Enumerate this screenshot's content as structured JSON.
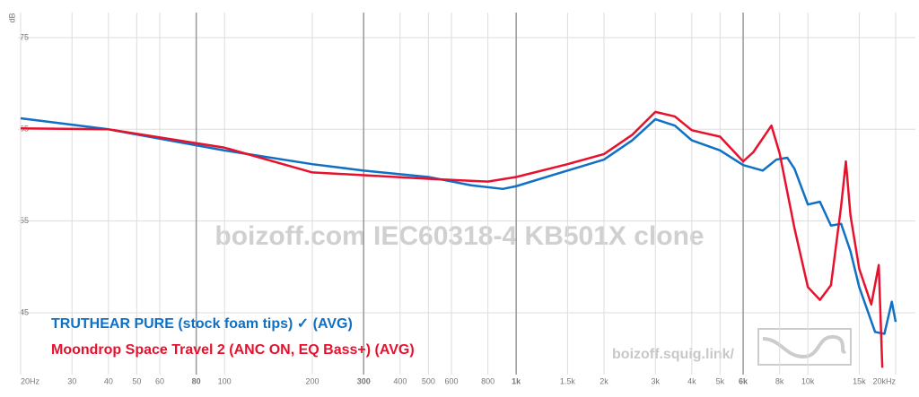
{
  "chart_data": {
    "type": "line",
    "watermark": "boizoff.com IEC60318-4 KB501X clone",
    "site": "boizoff.squig.link/",
    "y_label": "dB",
    "xlog": true,
    "xlim": [
      20,
      20000
    ],
    "ylim": [
      38,
      77
    ],
    "yticks": [
      45,
      55,
      65,
      75
    ],
    "xticks": [
      {
        "value": 20,
        "label": "20Hz"
      },
      30,
      40,
      50,
      60,
      80,
      100,
      200,
      300,
      400,
      500,
      600,
      800,
      {
        "value": 1000,
        "label": "1k"
      },
      {
        "value": 1500,
        "label": "1.5k"
      },
      {
        "value": 2000,
        "label": "2k"
      },
      {
        "value": 3000,
        "label": "3k"
      },
      {
        "value": 4000,
        "label": "4k"
      },
      {
        "value": 5000,
        "label": "5k"
      },
      {
        "value": 6000,
        "label": "6k"
      },
      {
        "value": 8000,
        "label": "8k"
      },
      {
        "value": 10000,
        "label": "10k"
      },
      {
        "value": 15000,
        "label": "15k"
      },
      {
        "value": 20000,
        "label": "20kHz"
      }
    ],
    "bold_xticks": [
      80,
      300,
      1000,
      6000
    ],
    "grid": true,
    "series": [
      {
        "name": "TRUTHEAR PURE (stock foam tips) ✓ (AVG)",
        "color": "#1070c4",
        "x": [
          20,
          40,
          100,
          200,
          300,
          500,
          700,
          900,
          1000,
          1500,
          2000,
          2500,
          3000,
          3500,
          4000,
          5000,
          6000,
          7000,
          7800,
          8500,
          9000,
          10000,
          11000,
          12000,
          13000,
          14000,
          15000,
          17000,
          18300,
          19400,
          20000
        ],
        "values": [
          66.2,
          65,
          62.7,
          61.2,
          60.5,
          59.8,
          58.9,
          58.5,
          58.8,
          60.5,
          61.7,
          63.8,
          66.1,
          65.4,
          63.8,
          62.7,
          61.1,
          60.5,
          61.7,
          61.9,
          60.7,
          56.8,
          57.1,
          54.5,
          54.7,
          51.7,
          47.8,
          42.9,
          42.7,
          46.2,
          44
        ]
      },
      {
        "name": "Moondrop Space Travel 2 (ANC ON, EQ Bass+) (AVG)",
        "color": "#e8112d",
        "x": [
          20,
          40,
          100,
          200,
          300,
          500,
          800,
          1000,
          1500,
          2000,
          2500,
          3000,
          3500,
          4000,
          5000,
          6000,
          6500,
          7500,
          8000,
          9000,
          10000,
          11000,
          12000,
          13000,
          13500,
          14000,
          15000,
          16500,
          17500,
          18000
        ],
        "values": [
          65.1,
          65,
          63,
          60.3,
          60,
          59.6,
          59.3,
          59.8,
          61.2,
          62.3,
          64.4,
          66.9,
          66.4,
          64.9,
          64.2,
          61.5,
          62.5,
          65.4,
          62.4,
          54.2,
          47.8,
          46.4,
          48,
          56.6,
          61.5,
          55.6,
          49.8,
          45.9,
          50.2,
          39
        ]
      }
    ]
  }
}
